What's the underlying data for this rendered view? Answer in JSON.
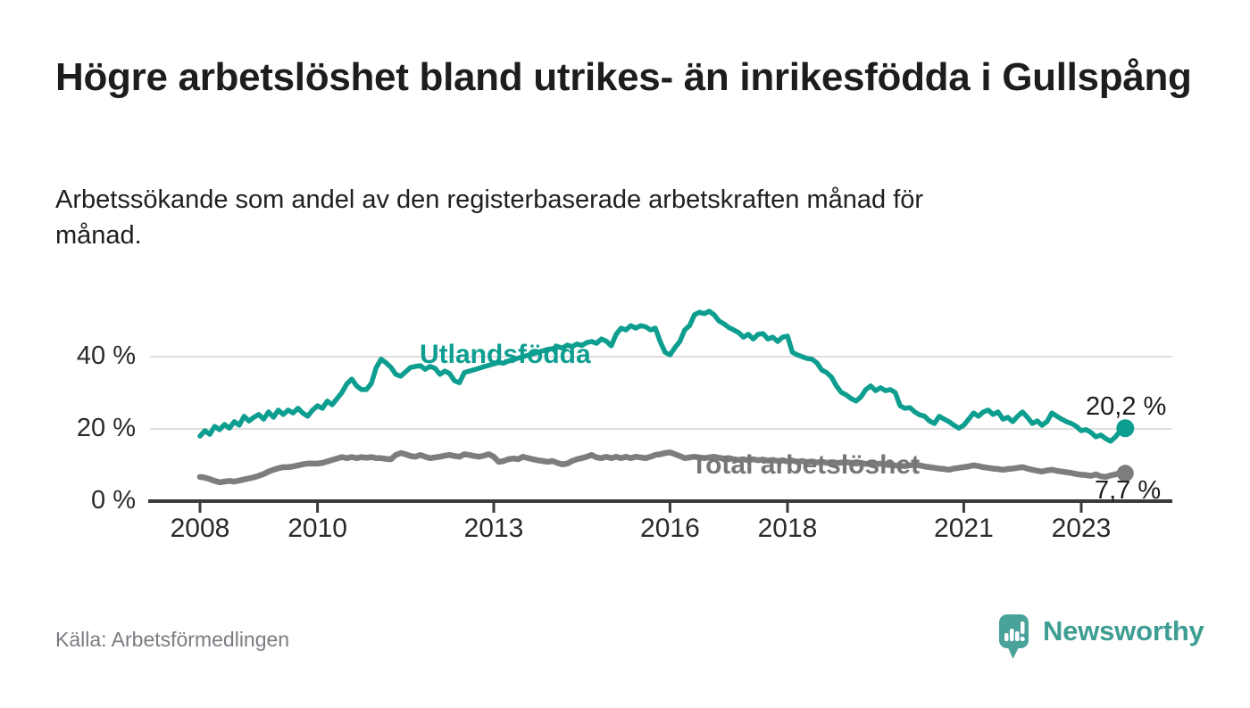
{
  "header": {
    "title": "Högre arbetslöshet bland utrikes- än inrikesfödda i Gullspång",
    "subtitle": "Arbetssökande som andel av den registerbaserade arbetskraften månad för månad."
  },
  "footer": {
    "source": "Källa: Arbetsförmedlingen",
    "brand": "Newsworthy"
  },
  "colors": {
    "foreign_line": "#0d9e90",
    "total_line": "#7d7d7d",
    "axis": "#3b3b3b",
    "grid": "#dedede",
    "text_dark": "#1d1d1b",
    "brand_teal": "#4aa39a"
  },
  "chart_data": {
    "type": "line",
    "title": "Högre arbetslöshet bland utrikes- än inrikesfödda i Gullspång",
    "subtitle": "Arbetssökande som andel av den registerbaserade arbetskraften månad för månad.",
    "x_unit": "monthly",
    "x_start_year": 2008,
    "x_end": "2023-10",
    "y_unit": "%",
    "ylim": [
      0,
      55
    ],
    "grid": "horizontal",
    "x_ticks": [
      "2008",
      "2010",
      "2013",
      "2016",
      "2018",
      "2021",
      "2023"
    ],
    "y_ticks": [
      "40 %",
      "20 %",
      "0 %"
    ],
    "series": [
      {
        "name": "Utlandsfödda",
        "color": "#0d9e90",
        "end_value": 20.2,
        "end_label": "20,2 %",
        "values": [
          18.0,
          19.5,
          18.5,
          20.7,
          19.8,
          21.2,
          20.2,
          22.0,
          21.0,
          23.5,
          22.2,
          23.2,
          24.0,
          22.7,
          24.7,
          23.2,
          25.2,
          24.0,
          25.2,
          24.4,
          25.7,
          24.4,
          23.5,
          25.2,
          26.4,
          25.7,
          27.7,
          26.7,
          28.4,
          30.1,
          32.5,
          33.8,
          31.9,
          30.9,
          30.9,
          32.6,
          37.0,
          39.3,
          38.3,
          37.0,
          35.1,
          34.6,
          35.8,
          37.0,
          37.3,
          37.5,
          36.5,
          37.3,
          36.8,
          35.1,
          36.0,
          35.3,
          33.3,
          32.8,
          35.6,
          36.0,
          36.4,
          36.8,
          37.2,
          37.6,
          38.0,
          38.4,
          38.2,
          38.8,
          39.2,
          39.6,
          40.0,
          40.4,
          40.8,
          41.2,
          41.6,
          42.0,
          42.2,
          42.8,
          42.4,
          43.2,
          42.8,
          43.5,
          43.1,
          43.9,
          44.2,
          43.7,
          44.9,
          44.3,
          43.0,
          46.2,
          47.9,
          47.4,
          48.6,
          47.9,
          48.6,
          48.3,
          47.4,
          47.9,
          44.2,
          41.2,
          40.5,
          42.5,
          44.2,
          47.4,
          48.6,
          51.6,
          52.3,
          51.9,
          52.6,
          51.6,
          49.9,
          49.1,
          48.1,
          47.4,
          46.7,
          45.4,
          46.2,
          44.9,
          46.2,
          46.4,
          44.9,
          45.4,
          44.2,
          45.4,
          45.7,
          41.2,
          40.5,
          40.0,
          39.5,
          39.3,
          38.3,
          36.3,
          35.6,
          34.3,
          31.9,
          30.1,
          29.4,
          28.4,
          27.7,
          28.9,
          30.9,
          31.9,
          30.6,
          31.4,
          30.6,
          30.9,
          30.1,
          26.4,
          25.7,
          25.9,
          24.7,
          23.9,
          23.5,
          22.2,
          21.5,
          23.5,
          22.7,
          22.0,
          21.0,
          20.2,
          21.0,
          22.7,
          24.4,
          23.5,
          24.7,
          25.2,
          24.0,
          24.7,
          22.7,
          23.2,
          22.0,
          23.5,
          24.7,
          23.2,
          21.5,
          22.2,
          21.0,
          22.0,
          24.4,
          23.5,
          22.7,
          22.0,
          21.5,
          20.7,
          19.5,
          19.8,
          19.0,
          17.8,
          18.3,
          17.3,
          16.6,
          17.8,
          19.5,
          20.2
        ]
      },
      {
        "name": "Total arbetslöshet",
        "color": "#7d7d7d",
        "end_value": 7.7,
        "end_label": "7,7 %",
        "values": [
          6.7,
          6.5,
          6.1,
          5.6,
          5.2,
          5.4,
          5.6,
          5.4,
          5.7,
          6.0,
          6.3,
          6.6,
          7.0,
          7.5,
          8.2,
          8.7,
          9.1,
          9.4,
          9.4,
          9.6,
          9.9,
          10.2,
          10.4,
          10.4,
          10.4,
          10.6,
          11.0,
          11.4,
          11.8,
          12.2,
          11.9,
          12.2,
          11.9,
          12.2,
          12.0,
          12.2,
          11.9,
          11.9,
          11.7,
          11.6,
          12.8,
          13.3,
          13.0,
          12.5,
          12.3,
          12.8,
          12.3,
          11.9,
          12.1,
          12.3,
          12.6,
          12.8,
          12.5,
          12.3,
          13.0,
          12.8,
          12.5,
          12.3,
          12.6,
          13.0,
          12.3,
          10.9,
          11.1,
          11.6,
          11.8,
          11.6,
          12.3,
          11.9,
          11.6,
          11.3,
          11.1,
          10.9,
          11.1,
          10.6,
          10.2,
          10.4,
          11.1,
          11.6,
          11.9,
          12.3,
          12.8,
          12.1,
          11.9,
          12.3,
          11.9,
          12.3,
          11.9,
          12.3,
          11.9,
          12.3,
          12.1,
          11.9,
          12.3,
          12.8,
          13.0,
          13.3,
          13.5,
          13.0,
          12.5,
          11.9,
          12.1,
          12.3,
          12.1,
          11.9,
          12.1,
          12.3,
          12.0,
          11.8,
          11.9,
          11.6,
          11.4,
          11.6,
          11.3,
          11.6,
          11.3,
          11.5,
          11.2,
          11.4,
          11.1,
          11.3,
          11.0,
          11.2,
          10.9,
          11.1,
          10.8,
          11.0,
          10.7,
          10.9,
          10.6,
          10.8,
          10.5,
          10.7,
          10.8,
          10.6,
          10.4,
          10.6,
          10.3,
          10.5,
          10.2,
          10.4,
          10.1,
          10.0,
          9.9,
          9.8,
          9.7,
          9.9,
          10.1,
          9.9,
          9.6,
          9.4,
          9.2,
          9.0,
          8.9,
          8.7,
          9.0,
          9.2,
          9.4,
          9.6,
          9.9,
          9.7,
          9.4,
          9.2,
          9.0,
          8.9,
          8.7,
          8.9,
          9.0,
          9.2,
          9.4,
          9.0,
          8.7,
          8.4,
          8.2,
          8.5,
          8.7,
          8.4,
          8.2,
          8.0,
          7.8,
          7.5,
          7.3,
          7.2,
          7.0,
          7.4,
          6.9,
          6.7,
          7.1,
          7.4,
          7.9,
          7.7
        ]
      }
    ]
  }
}
